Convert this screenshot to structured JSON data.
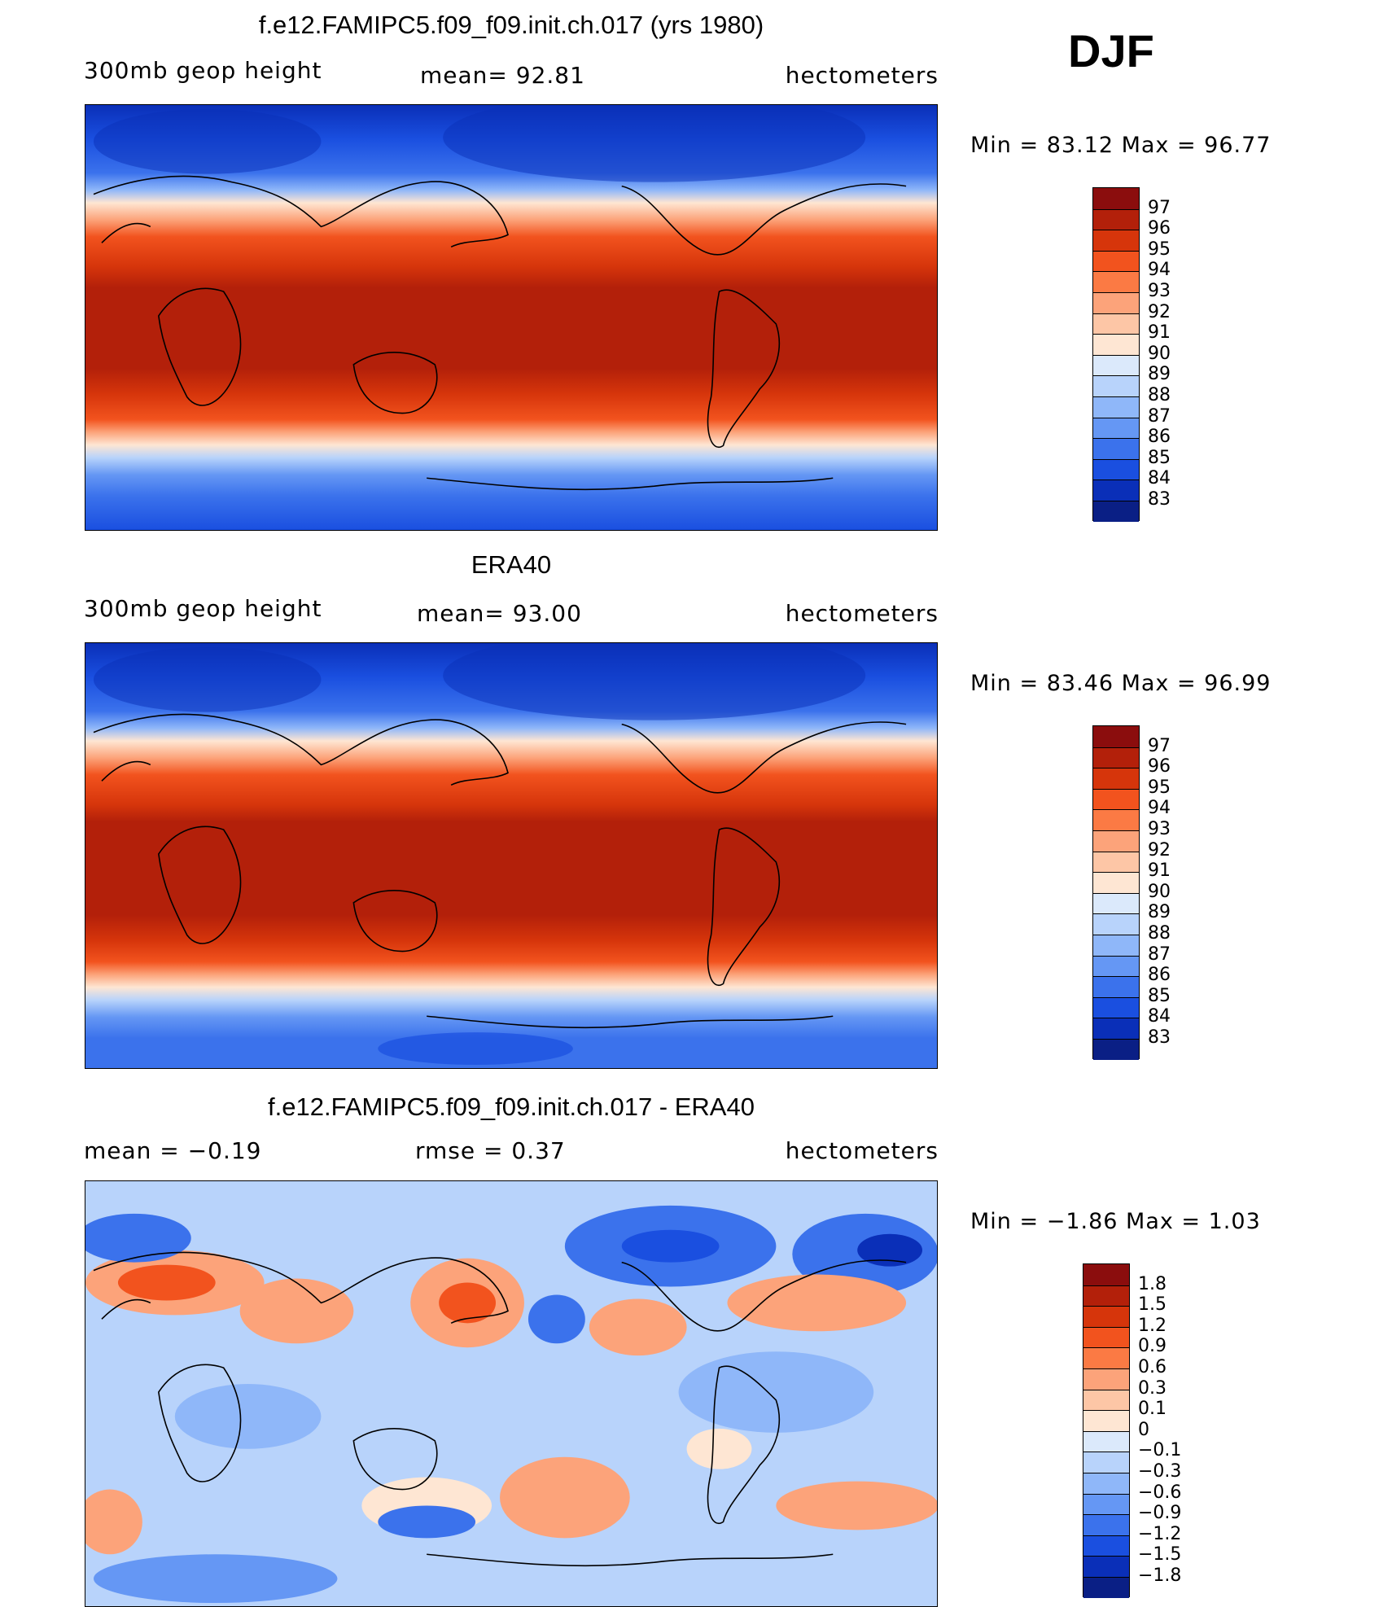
{
  "season": "DJF",
  "panels": [
    {
      "title": "f.e12.FAMIPC5.f09_f09.init.ch.017 (yrs 1980)",
      "left_label": "300mb  geop  height",
      "center_label": "mean=   92.81",
      "right_label": "hectometers",
      "min_max": "Min  =    83.12  Max  =    96.77",
      "colorbar": {
        "labels": [
          "97",
          "96",
          "95",
          "94",
          "93",
          "92",
          "91",
          "90",
          "89",
          "88",
          "87",
          "86",
          "85",
          "84",
          "83"
        ],
        "colors": [
          "#8b0d0d",
          "#b3200a",
          "#d6350b",
          "#f2531e",
          "#fb7a44",
          "#fca37a",
          "#fdc6a6",
          "#fee6d3",
          "#dbe9fb",
          "#b8d3fb",
          "#8fb7f9",
          "#6597f4",
          "#3b72ec",
          "#1a4fe0",
          "#0a2fb8",
          "#0a1f85"
        ]
      }
    },
    {
      "title": "ERA40",
      "left_label": "300mb  geop  height",
      "center_label": "mean=   93.00",
      "right_label": "hectometers",
      "min_max": "Min  =    83.46  Max  =    96.99",
      "colorbar": {
        "labels": [
          "97",
          "96",
          "95",
          "94",
          "93",
          "92",
          "91",
          "90",
          "89",
          "88",
          "87",
          "86",
          "85",
          "84",
          "83"
        ],
        "colors": [
          "#8b0d0d",
          "#b3200a",
          "#d6350b",
          "#f2531e",
          "#fb7a44",
          "#fca37a",
          "#fdc6a6",
          "#fee6d3",
          "#dbe9fb",
          "#b8d3fb",
          "#8fb7f9",
          "#6597f4",
          "#3b72ec",
          "#1a4fe0",
          "#0a2fb8",
          "#0a1f85"
        ]
      }
    },
    {
      "title": "f.e12.FAMIPC5.f09_f09.init.ch.017 - ERA40",
      "left_label": "mean  =    −0.19",
      "center_label": "rmse  =     0.37",
      "right_label": "hectometers",
      "min_max": "Min  =    −1.86  Max  =      1.03",
      "colorbar": {
        "labels": [
          "1.8",
          "1.5",
          "1.2",
          "0.9",
          "0.6",
          "0.3",
          "0.1",
          "0",
          "−0.1",
          "−0.3",
          "−0.6",
          "−0.9",
          "−1.2",
          "−1.5",
          "−1.8"
        ],
        "colors": [
          "#8b0d0d",
          "#b3200a",
          "#d6350b",
          "#f2531e",
          "#fb7a44",
          "#fca37a",
          "#fdc6a6",
          "#fee6d3",
          "#dbe9fb",
          "#b8d3fb",
          "#8fb7f9",
          "#6597f4",
          "#3b72ec",
          "#1a4fe0",
          "#0a2fb8",
          "#0a1f85"
        ]
      }
    }
  ]
}
